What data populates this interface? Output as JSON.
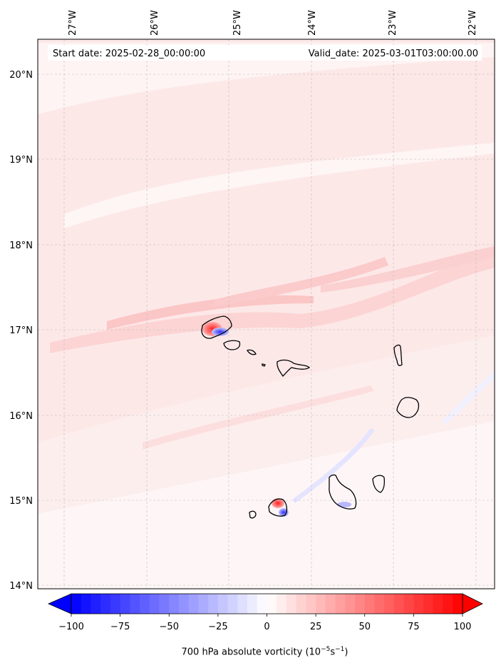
{
  "header": {
    "start_date": "Start date: 2025-02-28_00:00:00",
    "valid_date": "Valid_date: 2025-03-01T03:00:00.00"
  },
  "map": {
    "lon_ticks": [
      "27°W",
      "26°W",
      "25°W",
      "24°W",
      "23°W",
      "22°W"
    ],
    "lat_ticks": [
      "20°N",
      "19°N",
      "18°N",
      "17°N",
      "16°N",
      "15°N",
      "14°N"
    ],
    "colors": {
      "neg": "#0000ff",
      "pos": "#ff0000",
      "bg": "#fde9e9",
      "coast": "#000000"
    }
  },
  "colorbar": {
    "ticks": [
      "−100",
      "−75",
      "−50",
      "−25",
      "0",
      "25",
      "50",
      "75",
      "100"
    ],
    "label_prefix": "700 hPa absolute vorticity (10",
    "label_exp1": "−5",
    "label_mid": "s",
    "label_exp2": "−1",
    "label_suffix": ")"
  }
}
